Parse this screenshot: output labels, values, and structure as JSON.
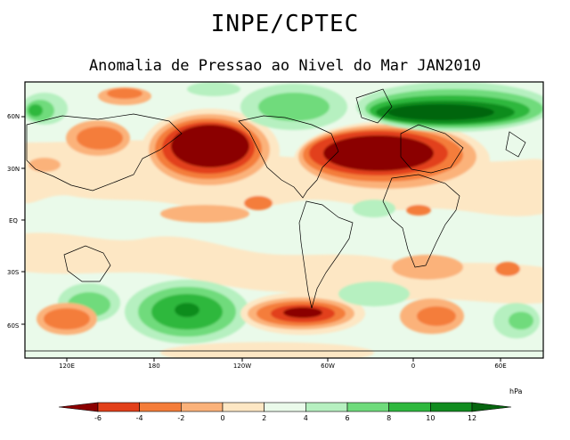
{
  "map": {
    "title": "INPE/CPTEC",
    "subtitle": "Anomalia de Pressao ao Nivel do Mar JAN2010",
    "lat_labels": [
      "60N",
      "30N",
      "EQ",
      "30S",
      "60S"
    ],
    "lon_labels": [
      "120E",
      "180",
      "120W",
      "60W",
      "0",
      "60E"
    ],
    "projection": "cylindrical equidistant, lon 80E-450E, lat 80S-80N",
    "units": "hPa",
    "colorbar": {
      "ticks": [
        "-6",
        "-4",
        "-2",
        "0",
        "2",
        "4",
        "6",
        "8",
        "10",
        "12"
      ],
      "colors": [
        "#8b0000",
        "#e2401a",
        "#f47d3a",
        "#fbb27a",
        "#fde7c4",
        "#eafaea",
        "#b6f0c0",
        "#6fdb7c",
        "#2fb83e",
        "#118c1f",
        "#06650f"
      ]
    }
  }
}
